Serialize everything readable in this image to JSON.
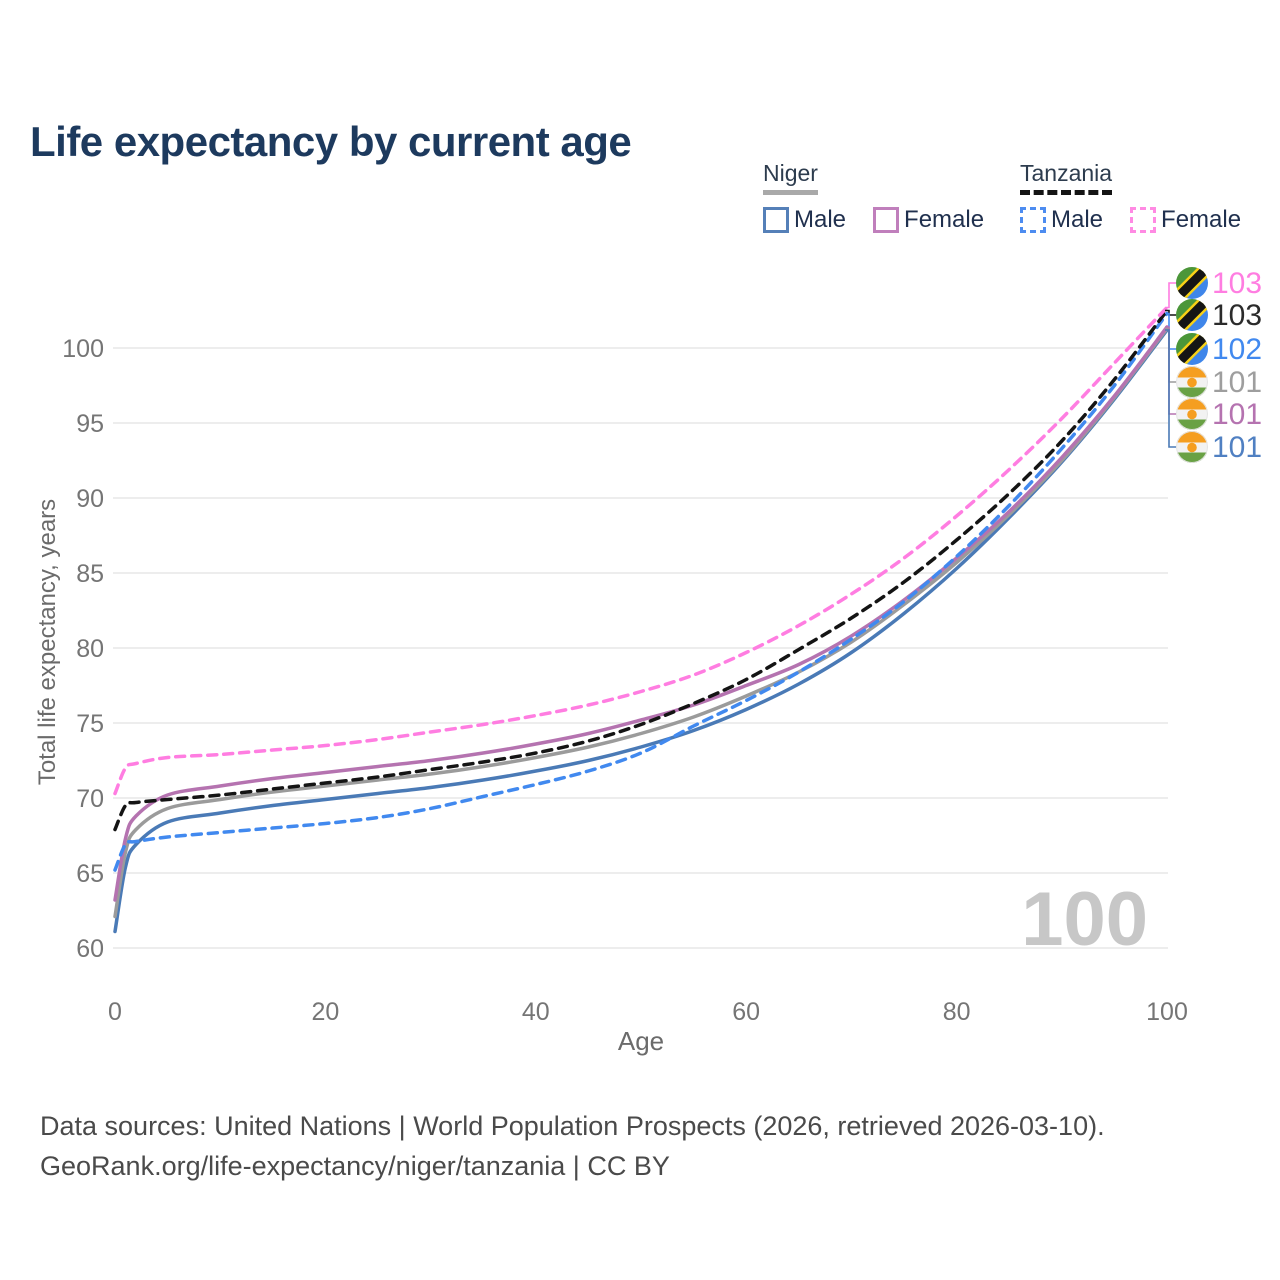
{
  "title": "Life expectancy by current age",
  "legend": {
    "niger": {
      "country": "Niger",
      "male": "Male",
      "female": "Female"
    },
    "tanzania": {
      "country": "Tanzania",
      "male": "Male",
      "female": "Female"
    }
  },
  "colors": {
    "title_text": "#1d3a5e",
    "tick_text": "#757575",
    "gridline": "#ededed",
    "watermark_text": "#c7c7c7",
    "niger_male": "#4a7ab6",
    "niger_female": "#b573b0",
    "niger_total": "#9b9b9b",
    "tanzania_male": "#4189ef",
    "tanzania_female": "#ff7de1",
    "tanzania_total": "#141414"
  },
  "chart_data": {
    "type": "line",
    "title": "Life expectancy by current age",
    "xlabel": "Age",
    "ylabel": "Total life expectancy, years",
    "watermark": "100",
    "xlim": [
      0,
      100
    ],
    "ylim": [
      60,
      100
    ],
    "grid": "horizontal",
    "legend_position": "top-right",
    "x_ticks": [
      0,
      20,
      40,
      60,
      80,
      100
    ],
    "y_ticks": [
      60,
      65,
      70,
      75,
      80,
      85,
      90,
      95,
      100
    ],
    "x": [
      0,
      1,
      2,
      5,
      10,
      15,
      20,
      25,
      30,
      35,
      40,
      45,
      50,
      55,
      60,
      65,
      70,
      75,
      80,
      85,
      90,
      95,
      100
    ],
    "series": [
      {
        "name": "Tanzania Female",
        "flag": "tanzania-flag-icon",
        "color": "#ff7de1",
        "dashed": true,
        "end_label": "103",
        "label_color": "#ff7de1",
        "values": [
          70.3,
          72.0,
          72.3,
          72.7,
          72.9,
          73.2,
          73.5,
          73.9,
          74.4,
          74.9,
          75.5,
          76.2,
          77.1,
          78.2,
          79.7,
          81.5,
          83.6,
          86.0,
          88.8,
          91.9,
          95.3,
          99.0,
          102.7
        ]
      },
      {
        "name": "Tanzania",
        "flag": "tanzania-flag-icon",
        "color": "#141414",
        "dashed": true,
        "end_label": "103",
        "label_color": "#2b2b2b",
        "values": [
          67.9,
          69.5,
          69.7,
          69.9,
          70.2,
          70.6,
          71.0,
          71.4,
          71.9,
          72.4,
          73.0,
          73.8,
          74.9,
          76.3,
          77.9,
          79.9,
          82.0,
          84.4,
          87.2,
          90.3,
          93.8,
          97.9,
          102.5
        ]
      },
      {
        "name": "Tanzania Male",
        "flag": "tanzania-flag-icon",
        "color": "#4189ef",
        "dashed": true,
        "end_label": "102",
        "label_color": "#4189ef",
        "values": [
          65.2,
          66.9,
          67.1,
          67.4,
          67.7,
          68.0,
          68.3,
          68.7,
          69.3,
          70.1,
          70.9,
          71.8,
          73.0,
          74.8,
          76.5,
          78.4,
          80.6,
          83.1,
          86.1,
          89.5,
          93.3,
          97.5,
          102.3
        ]
      },
      {
        "name": "Niger",
        "flag": "niger-flag-icon",
        "color": "#9b9b9b",
        "dashed": false,
        "end_label": "101",
        "label_color": "#9e9e9e",
        "values": [
          62.1,
          66.4,
          67.9,
          69.3,
          69.9,
          70.4,
          70.8,
          71.2,
          71.6,
          72.1,
          72.7,
          73.4,
          74.3,
          75.4,
          76.8,
          78.4,
          80.4,
          82.9,
          85.7,
          88.9,
          92.5,
          96.7,
          101.3
        ]
      },
      {
        "name": "Niger Female",
        "flag": "niger-flag-icon",
        "color": "#b573b0",
        "dashed": false,
        "end_label": "101",
        "label_color": "#b573b0",
        "values": [
          63.2,
          67.3,
          68.8,
          70.2,
          70.8,
          71.3,
          71.7,
          72.1,
          72.5,
          73.0,
          73.6,
          74.3,
          75.2,
          76.2,
          77.5,
          78.9,
          80.8,
          83.2,
          86.0,
          89.1,
          92.7,
          96.8,
          101.4
        ]
      },
      {
        "name": "Niger Male",
        "flag": "niger-flag-icon",
        "color": "#4a7ab6",
        "dashed": false,
        "end_label": "101",
        "label_color": "#5080c2",
        "values": [
          61.1,
          65.4,
          66.9,
          68.4,
          69.0,
          69.5,
          69.9,
          70.3,
          70.7,
          71.2,
          71.8,
          72.5,
          73.4,
          74.5,
          75.9,
          77.6,
          79.7,
          82.3,
          85.3,
          88.7,
          92.4,
          96.6,
          101.2
        ]
      }
    ]
  },
  "footer": {
    "line1": "Data sources: United Nations | World Population Prospects (2026, retrieved 2026-03-10).",
    "line2": "GeoRank.org/life-expectancy/niger/tanzania | CC BY"
  }
}
